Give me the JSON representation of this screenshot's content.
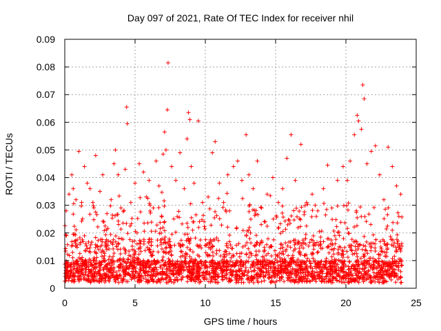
{
  "chart_data": {
    "type": "scatter",
    "title": "Day 097 of 2021, Rate Of TEC Index for receiver nhil",
    "xlabel": "GPS time / hours",
    "ylabel": "ROTI / TECUs",
    "xlim": [
      0,
      25
    ],
    "ylim": [
      0,
      0.09
    ],
    "xticks": [
      "0",
      "5",
      "10",
      "15",
      "20",
      "25"
    ],
    "yticks": [
      "0",
      "0.01",
      "0.02",
      "0.03",
      "0.04",
      "0.05",
      "0.06",
      "0.07",
      "0.08",
      "0.09"
    ],
    "grid": true,
    "marker": "+",
    "color": "#ff0000",
    "series": [
      {
        "name": "ROTI",
        "points": [
          [
            0.1,
            0.028
          ],
          [
            0.3,
            0.034
          ],
          [
            0.5,
            0.041
          ],
          [
            0.6,
            0.036
          ],
          [
            0.8,
            0.032
          ],
          [
            1.0,
            0.0495
          ],
          [
            1.2,
            0.031
          ],
          [
            1.4,
            0.044
          ],
          [
            1.6,
            0.038
          ],
          [
            1.8,
            0.036
          ],
          [
            2.0,
            0.031
          ],
          [
            2.2,
            0.048
          ],
          [
            2.5,
            0.035
          ],
          [
            2.7,
            0.041
          ],
          [
            3.0,
            0.027
          ],
          [
            3.3,
            0.032
          ],
          [
            3.5,
            0.045
          ],
          [
            3.6,
            0.05
          ],
          [
            3.8,
            0.041
          ],
          [
            4.0,
            0.029
          ],
          [
            4.3,
            0.043
          ],
          [
            4.4,
            0.0655
          ],
          [
            4.45,
            0.0595
          ],
          [
            4.7,
            0.031
          ],
          [
            5.0,
            0.038
          ],
          [
            5.3,
            0.045
          ],
          [
            5.6,
            0.042
          ],
          [
            5.8,
            0.033
          ],
          [
            6.0,
            0.039
          ],
          [
            6.3,
            0.029
          ],
          [
            6.5,
            0.046
          ],
          [
            6.7,
            0.037
          ],
          [
            7.0,
            0.0485
          ],
          [
            7.1,
            0.0565
          ],
          [
            7.2,
            0.05
          ],
          [
            7.3,
            0.0645
          ],
          [
            7.35,
            0.0815
          ],
          [
            7.6,
            0.044
          ],
          [
            7.9,
            0.039
          ],
          [
            8.2,
            0.049
          ],
          [
            8.5,
            0.036
          ],
          [
            8.7,
            0.054
          ],
          [
            8.8,
            0.0635
          ],
          [
            8.9,
            0.061
          ],
          [
            9.0,
            0.044
          ],
          [
            9.2,
            0.038
          ],
          [
            9.5,
            0.0605
          ],
          [
            9.8,
            0.031
          ],
          [
            10.2,
            0.033
          ],
          [
            10.5,
            0.049
          ],
          [
            10.7,
            0.053
          ],
          [
            11.0,
            0.038
          ],
          [
            11.3,
            0.031
          ],
          [
            11.6,
            0.041
          ],
          [
            12.0,
            0.044
          ],
          [
            12.3,
            0.046
          ],
          [
            12.6,
            0.039
          ],
          [
            12.9,
            0.0555
          ],
          [
            13.1,
            0.041
          ],
          [
            13.4,
            0.036
          ],
          [
            13.7,
            0.046
          ],
          [
            14.0,
            0.029
          ],
          [
            14.4,
            0.034
          ],
          [
            14.8,
            0.04
          ],
          [
            15.2,
            0.031
          ],
          [
            15.5,
            0.036
          ],
          [
            15.8,
            0.047
          ],
          [
            16.1,
            0.0555
          ],
          [
            16.4,
            0.039
          ],
          [
            16.8,
            0.052
          ],
          [
            17.2,
            0.031
          ],
          [
            17.6,
            0.034
          ],
          [
            18.0,
            0.028
          ],
          [
            18.4,
            0.036
          ],
          [
            18.7,
            0.0445
          ],
          [
            19.0,
            0.029
          ],
          [
            19.4,
            0.039
          ],
          [
            19.8,
            0.044
          ],
          [
            20.1,
            0.039
          ],
          [
            20.3,
            0.046
          ],
          [
            20.6,
            0.0555
          ],
          [
            20.8,
            0.0625
          ],
          [
            20.9,
            0.0605
          ],
          [
            21.1,
            0.0575
          ],
          [
            21.2,
            0.0735
          ],
          [
            21.3,
            0.0685
          ],
          [
            21.5,
            0.045
          ],
          [
            21.8,
            0.0495
          ],
          [
            22.1,
            0.0515
          ],
          [
            22.4,
            0.041
          ],
          [
            22.7,
            0.032
          ],
          [
            23.0,
            0.051
          ],
          [
            23.3,
            0.044
          ],
          [
            23.6,
            0.037
          ],
          [
            23.9,
            0.034
          ]
        ]
      }
    ]
  }
}
